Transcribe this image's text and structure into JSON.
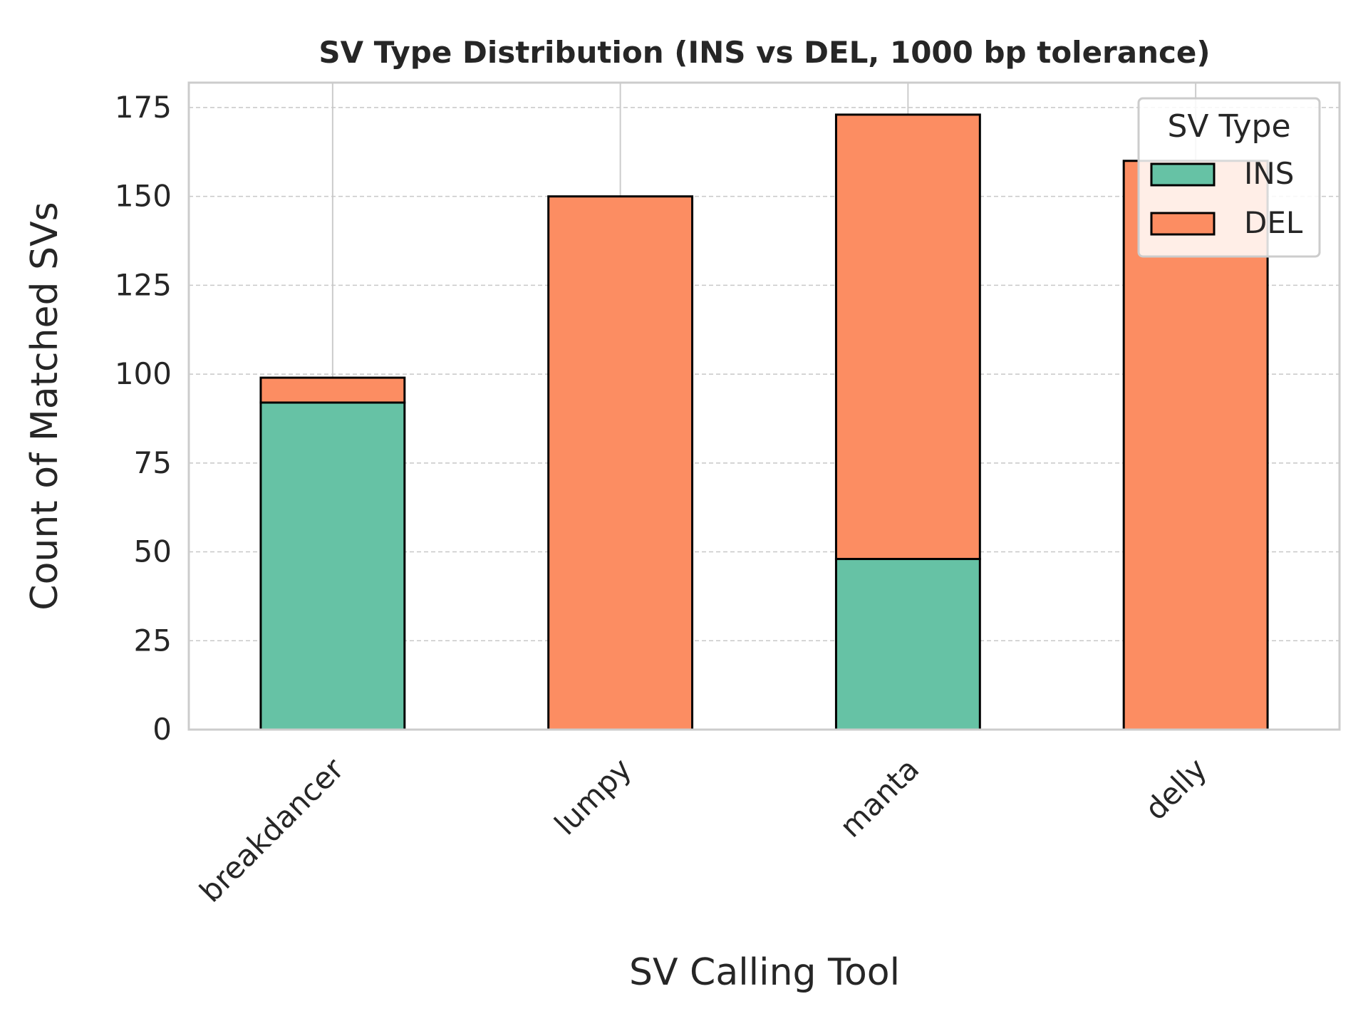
{
  "chart_data": {
    "type": "bar",
    "stacked": true,
    "title": "SV Type Distribution (INS vs DEL, 1000 bp tolerance)",
    "xlabel": "SV Calling Tool",
    "ylabel": "Count of Matched SVs",
    "categories": [
      "breakdancer",
      "lumpy",
      "manta",
      "delly"
    ],
    "series": [
      {
        "name": "INS",
        "values": [
          92,
          0,
          48,
          0
        ],
        "color": "#66c2a5"
      },
      {
        "name": "DEL",
        "values": [
          7,
          150,
          125,
          160
        ],
        "color": "#fc8d62"
      }
    ],
    "ylim": [
      0,
      182
    ],
    "yticks": [
      0,
      25,
      50,
      75,
      100,
      125,
      150,
      175
    ],
    "grid": true,
    "legend": {
      "title": "SV Type",
      "placement": "top-right"
    }
  }
}
